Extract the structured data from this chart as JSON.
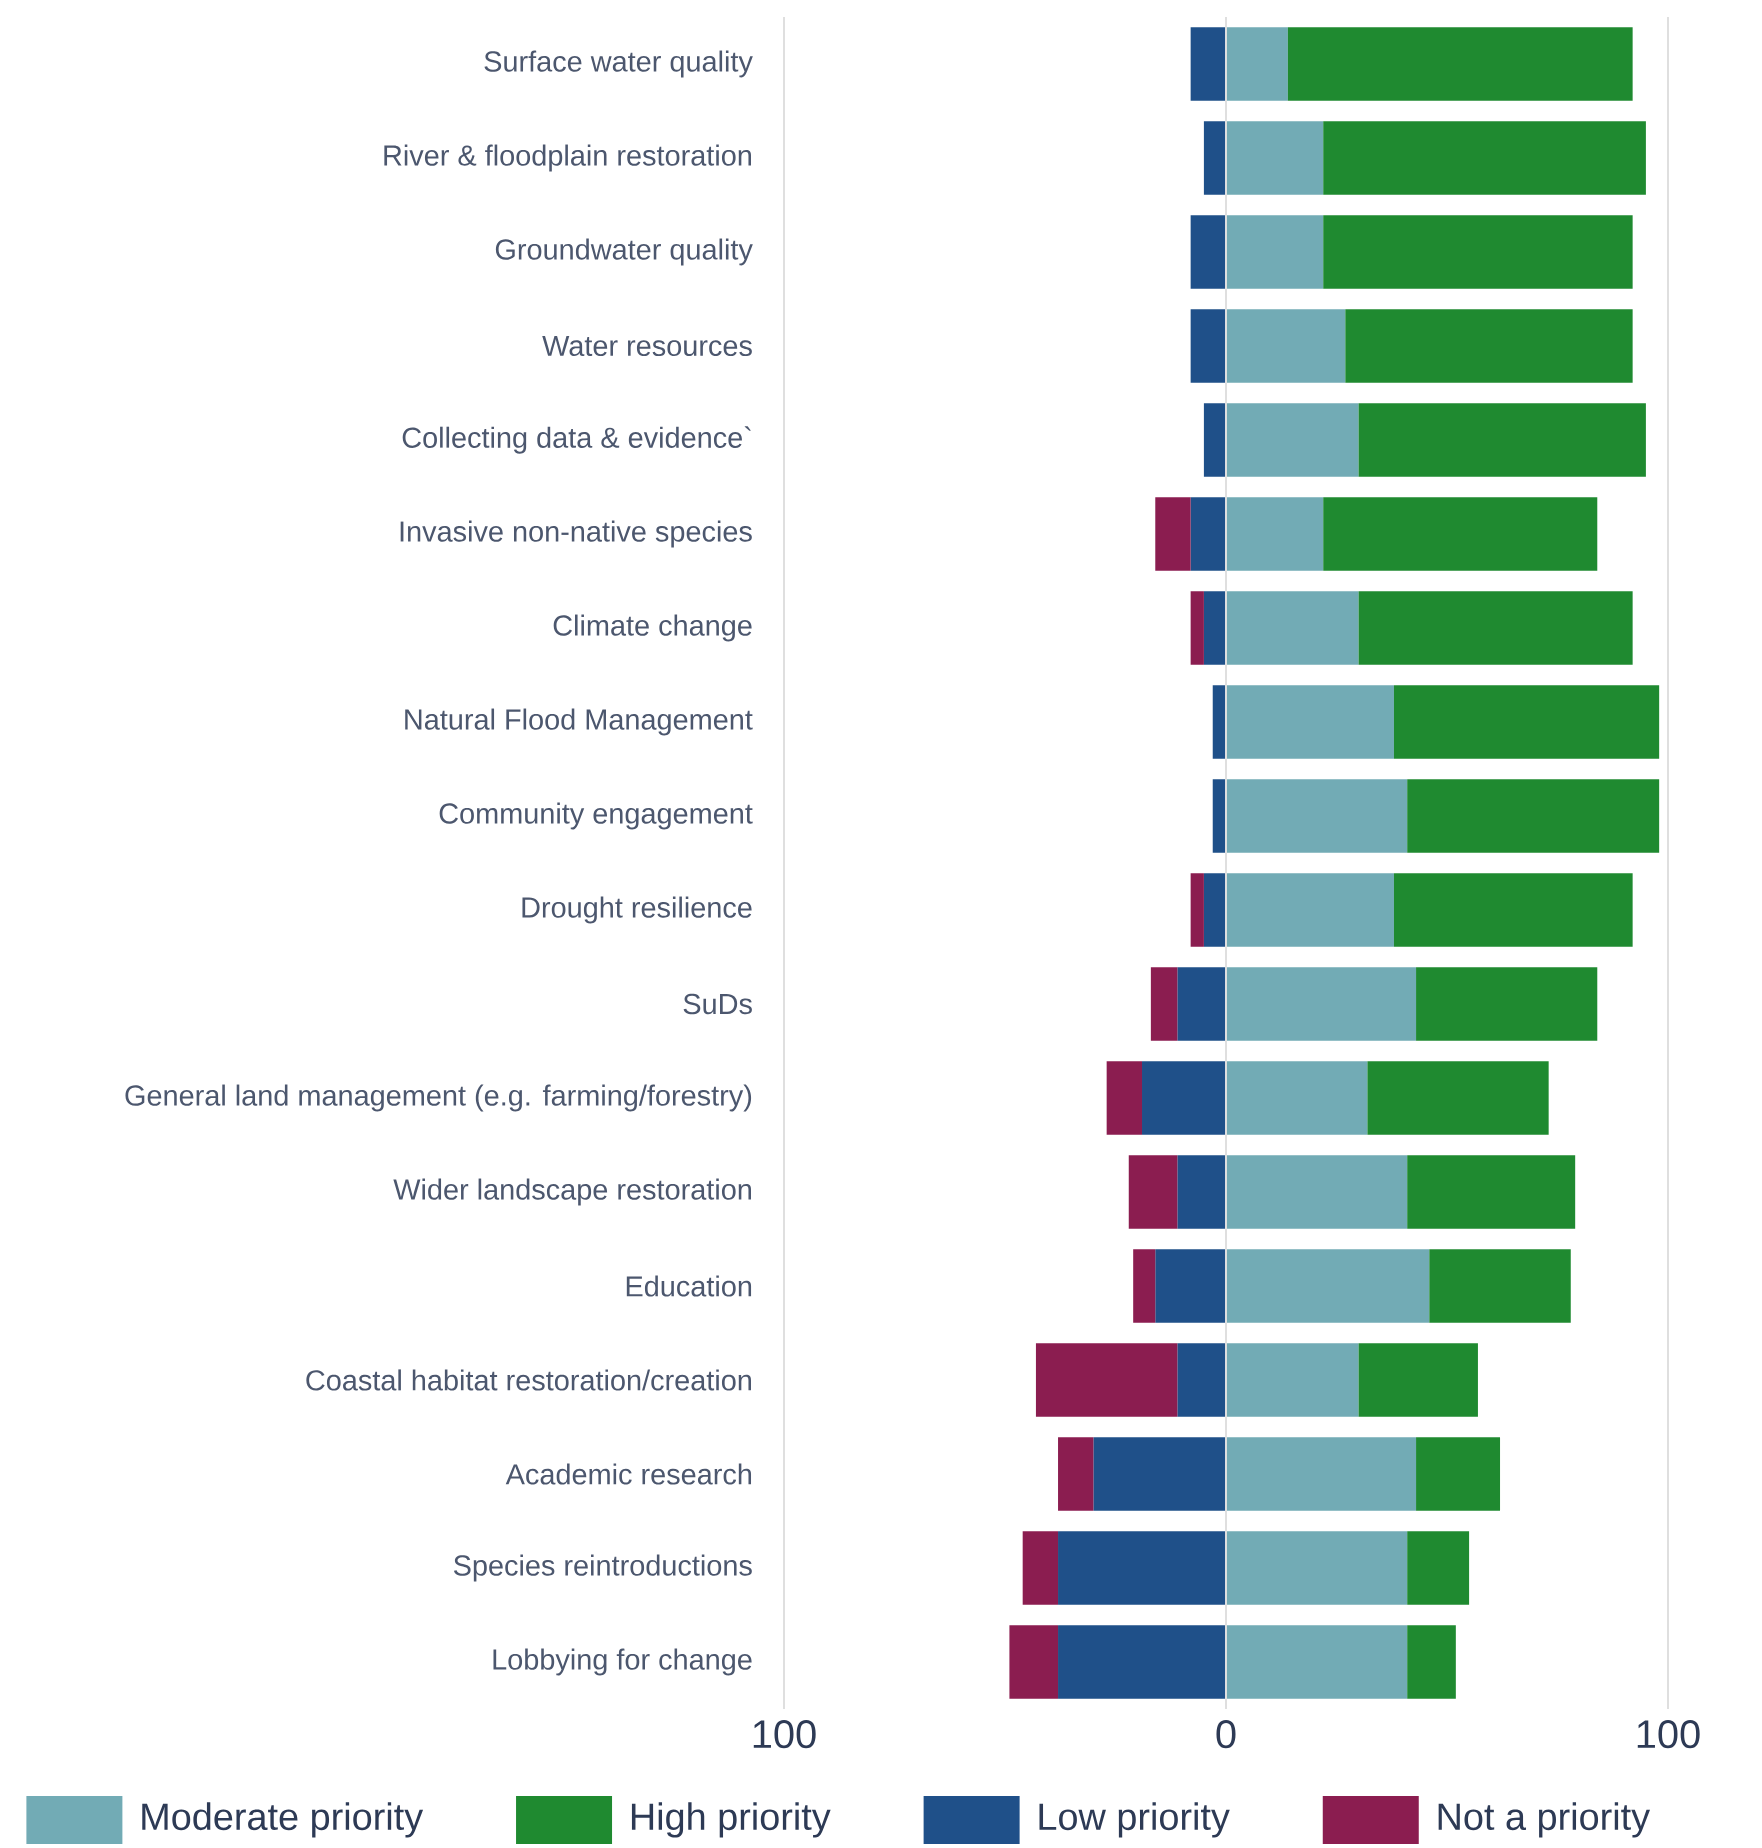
{
  "chart_data": {
    "type": "bar",
    "orientation": "horizontal",
    "stacked": true,
    "categories": [
      "Surface water quality",
      "River & floodplain restoration",
      "Groundwater quality",
      "Water resources",
      "Collecting data & evidence`",
      "Invasive non-native species",
      "Climate change",
      "Natural Flood Management",
      "Community engagement",
      "Drought resilience",
      "SuDs",
      "General land management (e.g. farming/forestry)",
      "Wider landscape restoration",
      "Education",
      "Coastal habitat restoration/creation",
      "Academic research",
      "Species reintroductions",
      "Lobbying for change"
    ],
    "series": [
      {
        "name": "Moderate priority",
        "color": "#72abb5",
        "values": [
          14,
          22,
          22,
          27,
          30,
          22,
          30,
          38,
          41,
          38,
          43,
          32,
          41,
          46,
          30,
          43,
          41,
          41
        ]
      },
      {
        "name": "High priority",
        "color": "#1f8a30",
        "values": [
          78,
          73,
          70,
          65,
          65,
          62,
          62,
          60,
          57,
          54,
          41,
          41,
          38,
          32,
          27,
          19,
          14,
          11
        ]
      },
      {
        "name": "Low priority",
        "color": "#1f5089",
        "values": [
          -8,
          -5,
          -8,
          -8,
          -5,
          -8,
          -5,
          -3,
          -3,
          -5,
          -11,
          -19,
          -11,
          -16,
          -11,
          -30,
          -38,
          -38
        ]
      },
      {
        "name": "Not a priority",
        "color": "#8b1d50",
        "values": [
          null,
          null,
          null,
          null,
          null,
          -8,
          -3,
          null,
          null,
          -3,
          -6,
          -8,
          -11,
          -5,
          -32,
          -8,
          -8,
          -11
        ]
      }
    ],
    "xlim": [
      -100,
      100
    ],
    "xticks": [
      {
        "value": -100,
        "label": "100"
      },
      0,
      100
    ],
    "grid": "x",
    "legend": "bottom"
  }
}
